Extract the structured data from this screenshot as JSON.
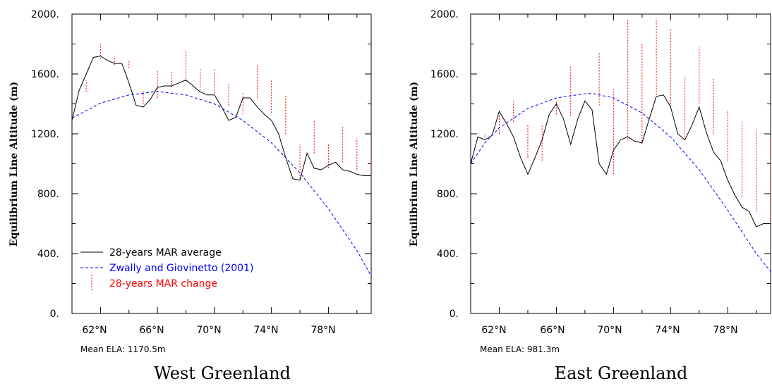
{
  "chart_data": [
    {
      "type": "line",
      "title": "West Greenland",
      "ylabel": "Equilibrium Line Altitude (m)",
      "xlabel": "",
      "ylim": [
        0,
        2000
      ],
      "xlim": [
        60,
        81
      ],
      "x_ticks": [
        "62°N",
        "66°N",
        "70°N",
        "74°N",
        "78°N"
      ],
      "y_ticks": [
        "0.",
        "400.",
        "800.",
        "1200.",
        "1600.",
        "2000."
      ],
      "note": "Mean ELA: 1170.5m",
      "grid": false,
      "legend_position": "bottom-left",
      "legend": [
        {
          "label": "28-years MAR average",
          "color": "#000000",
          "style": "solid"
        },
        {
          "label": "Zwally and Giovinetto (2001)",
          "color": "#0000ff",
          "style": "dashed"
        },
        {
          "label": "28-years MAR change",
          "color": "#ff0000",
          "style": "dotted"
        }
      ],
      "series": [
        {
          "name": "28-years MAR average",
          "color": "#000000",
          "x": [
            60,
            60.5,
            61,
            61.5,
            62,
            62.5,
            63,
            63.5,
            64,
            64.5,
            65,
            65.5,
            66,
            66.5,
            67,
            67.5,
            68,
            68.5,
            69,
            69.5,
            70,
            70.5,
            71,
            71.5,
            72,
            72.5,
            73,
            73.5,
            74,
            74.5,
            75,
            75.5,
            76,
            76.5,
            77,
            77.5,
            78,
            78.5,
            79,
            79.5,
            80,
            80.5,
            81
          ],
          "values": [
            1290,
            1490,
            1600,
            1710,
            1720,
            1690,
            1670,
            1670,
            1540,
            1390,
            1380,
            1430,
            1510,
            1520,
            1520,
            1540,
            1560,
            1520,
            1480,
            1460,
            1460,
            1380,
            1290,
            1310,
            1440,
            1440,
            1380,
            1330,
            1290,
            1200,
            1040,
            900,
            890,
            1070,
            970,
            960,
            990,
            1010,
            960,
            950,
            930,
            920,
            920
          ]
        },
        {
          "name": "Zwally and Giovinetto (2001)",
          "color": "#0000ff",
          "x": [
            60,
            62,
            64,
            66,
            68,
            70,
            72,
            74,
            76,
            78,
            80,
            81
          ],
          "values": [
            1305,
            1405,
            1460,
            1483,
            1460,
            1400,
            1290,
            1140,
            940,
            700,
            420,
            250
          ]
        },
        {
          "name": "28-years MAR change",
          "color": "#ff0000",
          "style": "vertical-segments",
          "x": [
            61,
            62,
            63,
            64,
            65,
            66,
            67,
            68,
            69,
            70,
            71,
            72,
            73,
            74,
            75,
            76,
            77,
            78,
            79,
            80,
            81
          ],
          "low": [
            1480,
            1700,
            1660,
            1640,
            1400,
            1440,
            1510,
            1550,
            1490,
            1470,
            1390,
            1330,
            1440,
            1340,
            1200,
            900,
            1070,
            970,
            1010,
            960,
            920
          ],
          "high": [
            1560,
            1800,
            1720,
            1690,
            1490,
            1620,
            1620,
            1760,
            1640,
            1630,
            1540,
            1480,
            1660,
            1560,
            1460,
            1130,
            1290,
            1130,
            1250,
            1170,
            1180
          ]
        }
      ]
    },
    {
      "type": "line",
      "title": "East Greenland",
      "ylabel": "Equilibrium Line Altitude (m)",
      "xlabel": "",
      "ylim": [
        0,
        2000
      ],
      "xlim": [
        60,
        81
      ],
      "x_ticks": [
        "62°N",
        "66°N",
        "70°N",
        "74°N",
        "78°N"
      ],
      "y_ticks": [
        "0.",
        "400.",
        "800.",
        "1200.",
        "1600.",
        "2000."
      ],
      "note": "Mean ELA: 981.3m",
      "grid": false,
      "series": [
        {
          "name": "28-years MAR average",
          "color": "#000000",
          "x": [
            60,
            60.5,
            61,
            61.5,
            62,
            62.5,
            63,
            63.5,
            64,
            64.5,
            65,
            65.5,
            66,
            66.5,
            67,
            67.5,
            68,
            68.5,
            69,
            69.5,
            70,
            70.5,
            71,
            71.5,
            72,
            72.5,
            73,
            73.5,
            74,
            74.5,
            75,
            75.5,
            76,
            76.5,
            77,
            77.5,
            78,
            78.5,
            79,
            79.5,
            80,
            80.5,
            81
          ],
          "values": [
            1000,
            1180,
            1160,
            1190,
            1350,
            1270,
            1180,
            1040,
            930,
            1040,
            1160,
            1330,
            1400,
            1300,
            1130,
            1300,
            1420,
            1360,
            1000,
            930,
            1090,
            1160,
            1180,
            1150,
            1140,
            1300,
            1450,
            1460,
            1380,
            1200,
            1160,
            1260,
            1380,
            1210,
            1080,
            1020,
            890,
            790,
            710,
            680,
            580,
            600,
            600
          ]
        },
        {
          "name": "Zwally and Giovinetto (2001)",
          "color": "#0000ff",
          "x": [
            60,
            61,
            62,
            64,
            66,
            68,
            68.5,
            70,
            72,
            74,
            76,
            78,
            80,
            81
          ],
          "values": [
            1000,
            1140,
            1240,
            1370,
            1440,
            1468,
            1470,
            1440,
            1340,
            1180,
            960,
            690,
            400,
            280
          ]
        },
        {
          "name": "28-years MAR change",
          "color": "#ff0000",
          "style": "vertical-segments",
          "x": [
            61,
            62,
            63,
            64,
            65,
            66,
            67,
            68,
            69,
            70,
            71,
            72,
            73,
            74,
            75,
            76,
            77,
            78,
            79,
            80,
            81
          ],
          "low": [
            1180,
            1200,
            1280,
            1040,
            1020,
            1330,
            1320,
            1430,
            1390,
            930,
            1160,
            1130,
            1460,
            1380,
            1160,
            1400,
            1200,
            1020,
            780,
            680,
            600
          ],
          "high": [
            1200,
            1330,
            1420,
            1260,
            1260,
            1420,
            1650,
            1430,
            1740,
            1500,
            1960,
            1800,
            1970,
            1900,
            1580,
            1780,
            1570,
            1360,
            1280,
            1230,
            1180
          ]
        }
      ]
    }
  ]
}
